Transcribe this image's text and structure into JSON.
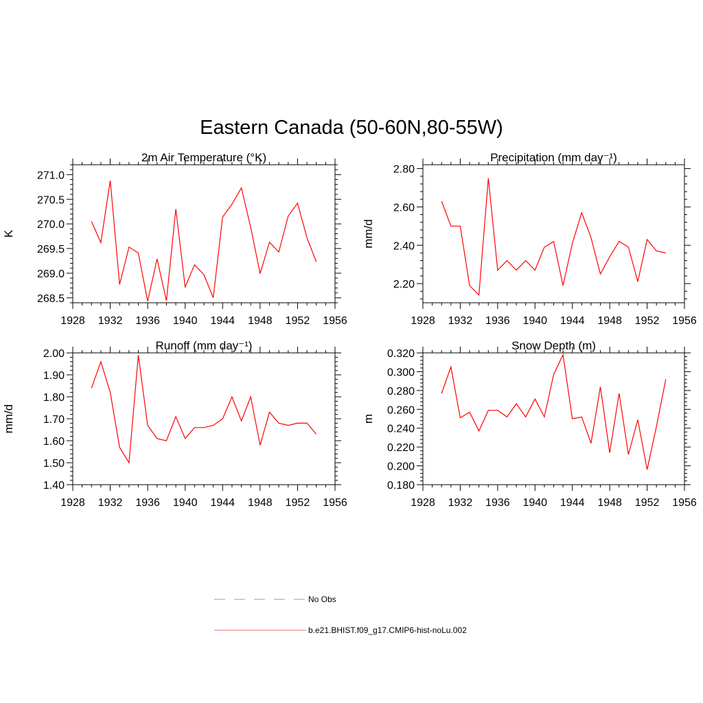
{
  "title": "Eastern Canada (50-60N,80-55W)",
  "legend": [
    {
      "label": "No Obs",
      "color": "#a8a8ee",
      "style": "dashed"
    },
    {
      "label": "b.e21.BHIST.f09_g17.CMIP6-hist-noLu.002",
      "color": "#f08a8a",
      "style": "solid"
    }
  ],
  "chart_data": [
    {
      "type": "line",
      "title": "2m Air Temperature (°K)",
      "ylabel": "K",
      "xlim": [
        1928,
        1956
      ],
      "ylim": [
        268.4,
        271.2
      ],
      "xticks": [
        "1928",
        "1932",
        "1936",
        "1940",
        "1944",
        "1948",
        "1952",
        "1956"
      ],
      "yticks": [
        "268.5",
        "269.0",
        "269.5",
        "270.0",
        "270.5",
        "271.0"
      ],
      "x": [
        1930,
        1931,
        1932,
        1933,
        1934,
        1935,
        1936,
        1937,
        1938,
        1939,
        1940,
        1941,
        1942,
        1943,
        1944,
        1945,
        1946,
        1947,
        1948,
        1949,
        1950,
        1951,
        1952,
        1953,
        1954
      ],
      "series": [
        {
          "color": "#ff0000",
          "values": [
            270.05,
            269.62,
            270.88,
            268.77,
            269.53,
            269.41,
            268.43,
            269.29,
            268.44,
            270.3,
            268.72,
            269.17,
            268.97,
            268.5,
            270.14,
            270.4,
            270.73,
            269.93,
            268.99,
            269.63,
            269.43,
            270.16,
            270.42,
            269.72,
            269.23
          ]
        }
      ]
    },
    {
      "type": "line",
      "title": "Precipitation (mm day⁻¹)",
      "ylabel": "mm/d",
      "xlim": [
        1928,
        1956
      ],
      "ylim": [
        2.1,
        2.82
      ],
      "xticks": [
        "1928",
        "1932",
        "1936",
        "1940",
        "1944",
        "1948",
        "1952",
        "1956"
      ],
      "yticks": [
        "2.20",
        "2.40",
        "2.60",
        "2.80"
      ],
      "x": [
        1930,
        1931,
        1932,
        1933,
        1934,
        1935,
        1936,
        1937,
        1938,
        1939,
        1940,
        1941,
        1942,
        1943,
        1944,
        1945,
        1946,
        1947,
        1948,
        1949,
        1950,
        1951,
        1952,
        1953,
        1954
      ],
      "series": [
        {
          "color": "#ff0000",
          "values": [
            2.63,
            2.5,
            2.5,
            2.19,
            2.14,
            2.75,
            2.27,
            2.32,
            2.27,
            2.32,
            2.27,
            2.39,
            2.42,
            2.19,
            2.41,
            2.57,
            2.44,
            2.25,
            2.34,
            2.42,
            2.39,
            2.21,
            2.43,
            2.37,
            2.36
          ]
        }
      ]
    },
    {
      "type": "line",
      "title": "Runoff (mm day⁻¹)",
      "ylabel": "mm/d",
      "xlim": [
        1928,
        1956
      ],
      "ylim": [
        1.4,
        2.0
      ],
      "xticks": [
        "1928",
        "1932",
        "1936",
        "1940",
        "1944",
        "1948",
        "1952",
        "1956"
      ],
      "yticks": [
        "1.40",
        "1.50",
        "1.60",
        "1.70",
        "1.80",
        "1.90",
        "2.00"
      ],
      "x": [
        1930,
        1931,
        1932,
        1933,
        1934,
        1935,
        1936,
        1937,
        1938,
        1939,
        1940,
        1941,
        1942,
        1943,
        1944,
        1945,
        1946,
        1947,
        1948,
        1949,
        1950,
        1951,
        1952,
        1953,
        1954
      ],
      "series": [
        {
          "color": "#ff0000",
          "values": [
            1.84,
            1.96,
            1.82,
            1.57,
            1.5,
            1.99,
            1.67,
            1.61,
            1.6,
            1.71,
            1.61,
            1.66,
            1.66,
            1.67,
            1.7,
            1.8,
            1.69,
            1.8,
            1.58,
            1.73,
            1.68,
            1.67,
            1.68,
            1.68,
            1.63
          ]
        }
      ]
    },
    {
      "type": "line",
      "title": "Snow Depth (m)",
      "ylabel": "m",
      "xlim": [
        1928,
        1956
      ],
      "ylim": [
        0.18,
        0.32
      ],
      "xticks": [
        "1928",
        "1932",
        "1936",
        "1940",
        "1944",
        "1948",
        "1952",
        "1956"
      ],
      "yticks": [
        "0.180",
        "0.200",
        "0.220",
        "0.240",
        "0.260",
        "0.280",
        "0.300",
        "0.320"
      ],
      "x": [
        1930,
        1931,
        1932,
        1933,
        1934,
        1935,
        1936,
        1937,
        1938,
        1939,
        1940,
        1941,
        1942,
        1943,
        1944,
        1945,
        1946,
        1947,
        1948,
        1949,
        1950,
        1951,
        1952,
        1953,
        1954
      ],
      "series": [
        {
          "color": "#ff0000",
          "values": [
            0.277,
            0.305,
            0.251,
            0.257,
            0.237,
            0.259,
            0.259,
            0.252,
            0.266,
            0.252,
            0.271,
            0.252,
            0.297,
            0.318,
            0.25,
            0.252,
            0.224,
            0.284,
            0.214,
            0.277,
            0.212,
            0.249,
            0.196,
            0.242,
            0.292
          ]
        }
      ]
    }
  ]
}
